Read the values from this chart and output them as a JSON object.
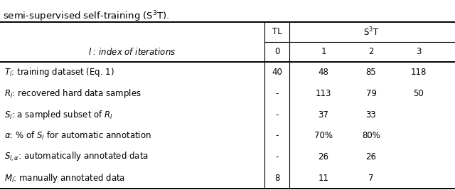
{
  "title_text": "semi-supervised self-training (S$^3$T).",
  "bg_color": "#ffffff",
  "text_color": "#000000",
  "font_size": 8.5,
  "title_font_size": 9.5,
  "rows": [
    [
      "$T_l$: training dataset (Eq. 1)",
      "40",
      "48",
      "85",
      "118"
    ],
    [
      "$R_l$: recovered hard data samples",
      "-",
      "113",
      "79",
      "50"
    ],
    [
      "$S_l$: a sampled subset of $R_l$",
      "-",
      "37",
      "33",
      ""
    ],
    [
      "$\\alpha$: % of $S_l$ for automatic annotation",
      "-",
      "70%",
      "80%",
      ""
    ],
    [
      "$S_{l,\\alpha}$: automatically annotated data",
      "-",
      "26",
      "26",
      ""
    ],
    [
      "$M_l$: manually annotated data",
      "8",
      "11",
      "7",
      ""
    ]
  ],
  "lw_thick": 1.4,
  "lw_thin": 0.8
}
